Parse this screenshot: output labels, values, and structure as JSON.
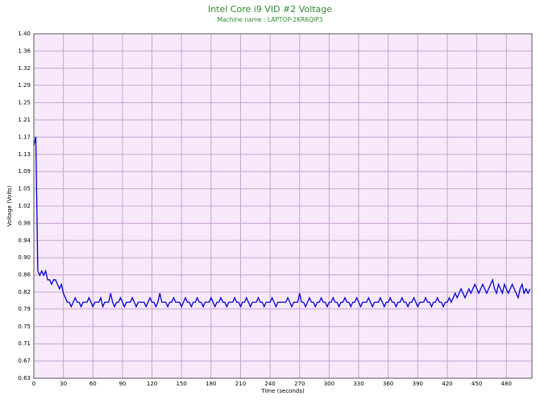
{
  "chart_data": {
    "type": "line",
    "title": "Intel Core i9 VID #2 Voltage",
    "subtitle": "Machine name : LAPTOP-2KR6QIP3",
    "xlabel": "Time (seconds)",
    "ylabel": "Voltage (Volts)",
    "color": "#0000cc",
    "grid": true,
    "xlim": [
      0,
      506
    ],
    "ylim": [
      0.63,
      1.4
    ],
    "xticks": [
      0,
      30,
      60,
      90,
      120,
      150,
      180,
      210,
      240,
      270,
      300,
      330,
      360,
      390,
      420,
      450,
      480
    ],
    "yticks": [
      {
        "value": 0.63,
        "label": "0.63"
      },
      {
        "value": 0.6685,
        "label": "0.67"
      },
      {
        "value": 0.707,
        "label": "0.71"
      },
      {
        "value": 0.7455,
        "label": "0.75"
      },
      {
        "value": 0.785,
        "label": "0.79"
      },
      {
        "value": 0.8225,
        "label": "0.82"
      },
      {
        "value": 0.861,
        "label": "0.86"
      },
      {
        "value": 0.8995,
        "label": "0.90"
      },
      {
        "value": 0.938,
        "label": "0.94"
      },
      {
        "value": 0.9765,
        "label": "0.98"
      },
      {
        "value": 1.015,
        "label": "1.02"
      },
      {
        "value": 1.0535,
        "label": "1.05"
      },
      {
        "value": 1.092,
        "label": "1.09"
      },
      {
        "value": 1.1305,
        "label": "1.13"
      },
      {
        "value": 1.169,
        "label": "1.17"
      },
      {
        "value": 1.2075,
        "label": "1.21"
      },
      {
        "value": 1.246,
        "label": "1.25"
      },
      {
        "value": 1.285,
        "label": "1.29"
      },
      {
        "value": 1.323,
        "label": "1.32"
      },
      {
        "value": 1.3615,
        "label": "1.36"
      },
      {
        "value": 1.4,
        "label": "1.40"
      }
    ],
    "x": [
      0,
      2,
      4,
      6,
      8,
      10,
      12,
      14,
      16,
      18,
      20,
      22,
      24,
      26,
      28,
      30,
      32,
      34,
      36,
      38,
      40,
      42,
      44,
      46,
      48,
      50,
      52,
      54,
      56,
      58,
      60,
      62,
      64,
      66,
      68,
      70,
      72,
      74,
      76,
      78,
      80,
      82,
      84,
      86,
      88,
      90,
      92,
      94,
      96,
      98,
      100,
      102,
      104,
      106,
      108,
      110,
      112,
      114,
      116,
      118,
      120,
      122,
      124,
      126,
      128,
      130,
      132,
      134,
      136,
      138,
      140,
      142,
      144,
      146,
      148,
      150,
      152,
      154,
      156,
      158,
      160,
      162,
      164,
      166,
      168,
      170,
      172,
      174,
      176,
      178,
      180,
      182,
      184,
      186,
      188,
      190,
      192,
      194,
      196,
      198,
      200,
      202,
      204,
      206,
      208,
      210,
      212,
      214,
      216,
      218,
      220,
      222,
      224,
      226,
      228,
      230,
      232,
      234,
      236,
      238,
      240,
      242,
      244,
      246,
      248,
      250,
      252,
      254,
      256,
      258,
      260,
      262,
      264,
      266,
      268,
      270,
      272,
      274,
      276,
      278,
      280,
      282,
      284,
      286,
      288,
      290,
      292,
      294,
      296,
      298,
      300,
      302,
      304,
      306,
      308,
      310,
      312,
      314,
      316,
      318,
      320,
      322,
      324,
      326,
      328,
      330,
      332,
      334,
      336,
      338,
      340,
      342,
      344,
      346,
      348,
      350,
      352,
      354,
      356,
      358,
      360,
      362,
      364,
      366,
      368,
      370,
      372,
      374,
      376,
      378,
      380,
      382,
      384,
      386,
      388,
      390,
      392,
      394,
      396,
      398,
      400,
      402,
      404,
      406,
      408,
      410,
      412,
      414,
      416,
      418,
      420,
      422,
      424,
      426,
      428,
      430,
      432,
      434,
      436,
      438,
      440,
      442,
      444,
      446,
      448,
      450,
      452,
      454,
      456,
      458,
      460,
      462,
      464,
      466,
      468,
      470,
      472,
      474,
      476,
      478,
      480,
      482,
      484,
      486,
      488,
      490,
      492,
      494,
      496,
      498,
      500,
      502,
      504
    ],
    "values": [
      1.15,
      1.17,
      0.87,
      0.86,
      0.87,
      0.86,
      0.87,
      0.85,
      0.85,
      0.84,
      0.85,
      0.85,
      0.84,
      0.83,
      0.84,
      0.82,
      0.81,
      0.8,
      0.8,
      0.79,
      0.8,
      0.81,
      0.8,
      0.8,
      0.79,
      0.8,
      0.8,
      0.8,
      0.81,
      0.8,
      0.79,
      0.8,
      0.8,
      0.8,
      0.81,
      0.79,
      0.8,
      0.8,
      0.8,
      0.82,
      0.8,
      0.79,
      0.8,
      0.8,
      0.81,
      0.8,
      0.79,
      0.8,
      0.8,
      0.8,
      0.81,
      0.8,
      0.79,
      0.8,
      0.8,
      0.8,
      0.8,
      0.79,
      0.8,
      0.81,
      0.8,
      0.8,
      0.79,
      0.8,
      0.82,
      0.8,
      0.8,
      0.8,
      0.79,
      0.8,
      0.8,
      0.81,
      0.8,
      0.8,
      0.8,
      0.79,
      0.8,
      0.81,
      0.8,
      0.8,
      0.79,
      0.8,
      0.8,
      0.81,
      0.8,
      0.8,
      0.79,
      0.8,
      0.8,
      0.8,
      0.81,
      0.8,
      0.79,
      0.8,
      0.8,
      0.81,
      0.8,
      0.8,
      0.79,
      0.8,
      0.8,
      0.8,
      0.81,
      0.8,
      0.8,
      0.79,
      0.8,
      0.8,
      0.81,
      0.8,
      0.79,
      0.8,
      0.8,
      0.8,
      0.81,
      0.8,
      0.8,
      0.79,
      0.8,
      0.8,
      0.8,
      0.81,
      0.8,
      0.79,
      0.8,
      0.8,
      0.8,
      0.8,
      0.8,
      0.81,
      0.8,
      0.79,
      0.8,
      0.8,
      0.8,
      0.82,
      0.8,
      0.8,
      0.79,
      0.8,
      0.81,
      0.8,
      0.8,
      0.79,
      0.8,
      0.8,
      0.81,
      0.8,
      0.8,
      0.79,
      0.8,
      0.8,
      0.81,
      0.8,
      0.8,
      0.79,
      0.8,
      0.8,
      0.81,
      0.8,
      0.8,
      0.79,
      0.8,
      0.8,
      0.81,
      0.8,
      0.79,
      0.8,
      0.8,
      0.8,
      0.81,
      0.8,
      0.79,
      0.8,
      0.8,
      0.8,
      0.81,
      0.8,
      0.79,
      0.8,
      0.8,
      0.81,
      0.8,
      0.8,
      0.79,
      0.8,
      0.8,
      0.81,
      0.8,
      0.8,
      0.79,
      0.8,
      0.8,
      0.81,
      0.8,
      0.79,
      0.8,
      0.8,
      0.8,
      0.81,
      0.8,
      0.8,
      0.79,
      0.8,
      0.8,
      0.81,
      0.8,
      0.8,
      0.79,
      0.8,
      0.8,
      0.81,
      0.8,
      0.81,
      0.82,
      0.81,
      0.82,
      0.83,
      0.82,
      0.81,
      0.82,
      0.83,
      0.82,
      0.83,
      0.84,
      0.83,
      0.82,
      0.83,
      0.84,
      0.83,
      0.82,
      0.83,
      0.84,
      0.85,
      0.83,
      0.82,
      0.84,
      0.83,
      0.82,
      0.84,
      0.83,
      0.82,
      0.83,
      0.84,
      0.83,
      0.82,
      0.81,
      0.83,
      0.84,
      0.82,
      0.83,
      0.82,
      0.83
    ]
  }
}
